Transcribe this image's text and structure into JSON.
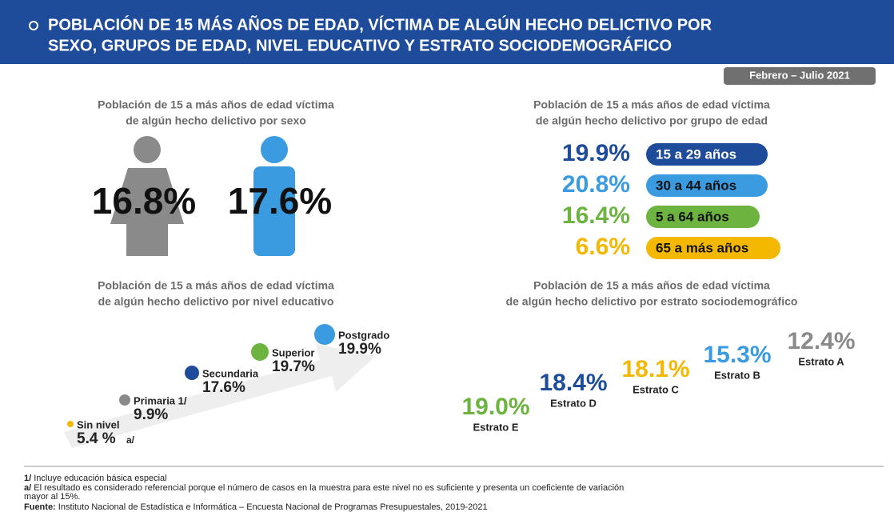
{
  "header": {
    "title_line1": "POBLACIÓN DE 15 MÁS AÑOS DE EDAD, VÍCTIMA DE ALGÚN HECHO DELICTIVO POR",
    "title_line2": "SEXO, GRUPOS DE EDAD, NIVEL EDUCATIVO Y ESTRATO SOCIODEMOGRÁFICO",
    "period": "Febrero – Julio 2021"
  },
  "sexo": {
    "title_line1": "Población de 15 a más años de edad víctima",
    "title_line2": "de algún hecho delictivo por sexo",
    "female": "16.8%",
    "male": "17.6%"
  },
  "edad": {
    "title_line1": "Población de 15 a más años de edad víctima",
    "title_line2": "de algún hecho delictivo por grupo de edad",
    "rows": [
      {
        "value": "19.9%",
        "label": "15 a 29 años"
      },
      {
        "value": "20.8%",
        "label": "30 a 44 años"
      },
      {
        "value": "16.4%",
        "label": "5 a 64 años"
      },
      {
        "value": "6.6%",
        "label": "65 a más años"
      }
    ]
  },
  "educacion": {
    "title_line1": "Población de 15 a más años de edad víctima",
    "title_line2": "de algún hecho delictivo por nivel educativo",
    "levels": [
      {
        "label": "Sin nivel",
        "value": "5.4 %",
        "note": "a/"
      },
      {
        "label": "Primaria 1/",
        "value": "9.9%"
      },
      {
        "label": "Secundaria",
        "value": "17.6%"
      },
      {
        "label": "Superior",
        "value": "19.7%"
      },
      {
        "label": "Postgrado",
        "value": "19.9%"
      }
    ]
  },
  "estrato": {
    "title_line1": "Población de 15 a más años de edad víctima",
    "title_line2": "de algún hecho delictivo por estrato sociodemográfico",
    "items": [
      {
        "value": "19.0%",
        "label": "Estrato E"
      },
      {
        "value": "18.4%",
        "label": "Estrato D"
      },
      {
        "value": "18.1%",
        "label": "Estrato C"
      },
      {
        "value": "15.3%",
        "label": "Estrato B"
      },
      {
        "value": "12.4%",
        "label": "Estrato A"
      }
    ]
  },
  "footer": {
    "note1_mark": "1/",
    "note1": " Incluye educación básica especial",
    "note2_mark": "a/",
    "note2": " El resultado es considerado referencial porque el número de casos en la muestra para este nivel no es suficiente y presenta un coeficiente de variación",
    "note2_cont": "mayor al 15%.",
    "source_mark": "Fuente:",
    "source": " Instituto Nacional de Estadística e Informática – Encuesta Nacional de Programas Presupuestales, 2019-2021"
  }
}
